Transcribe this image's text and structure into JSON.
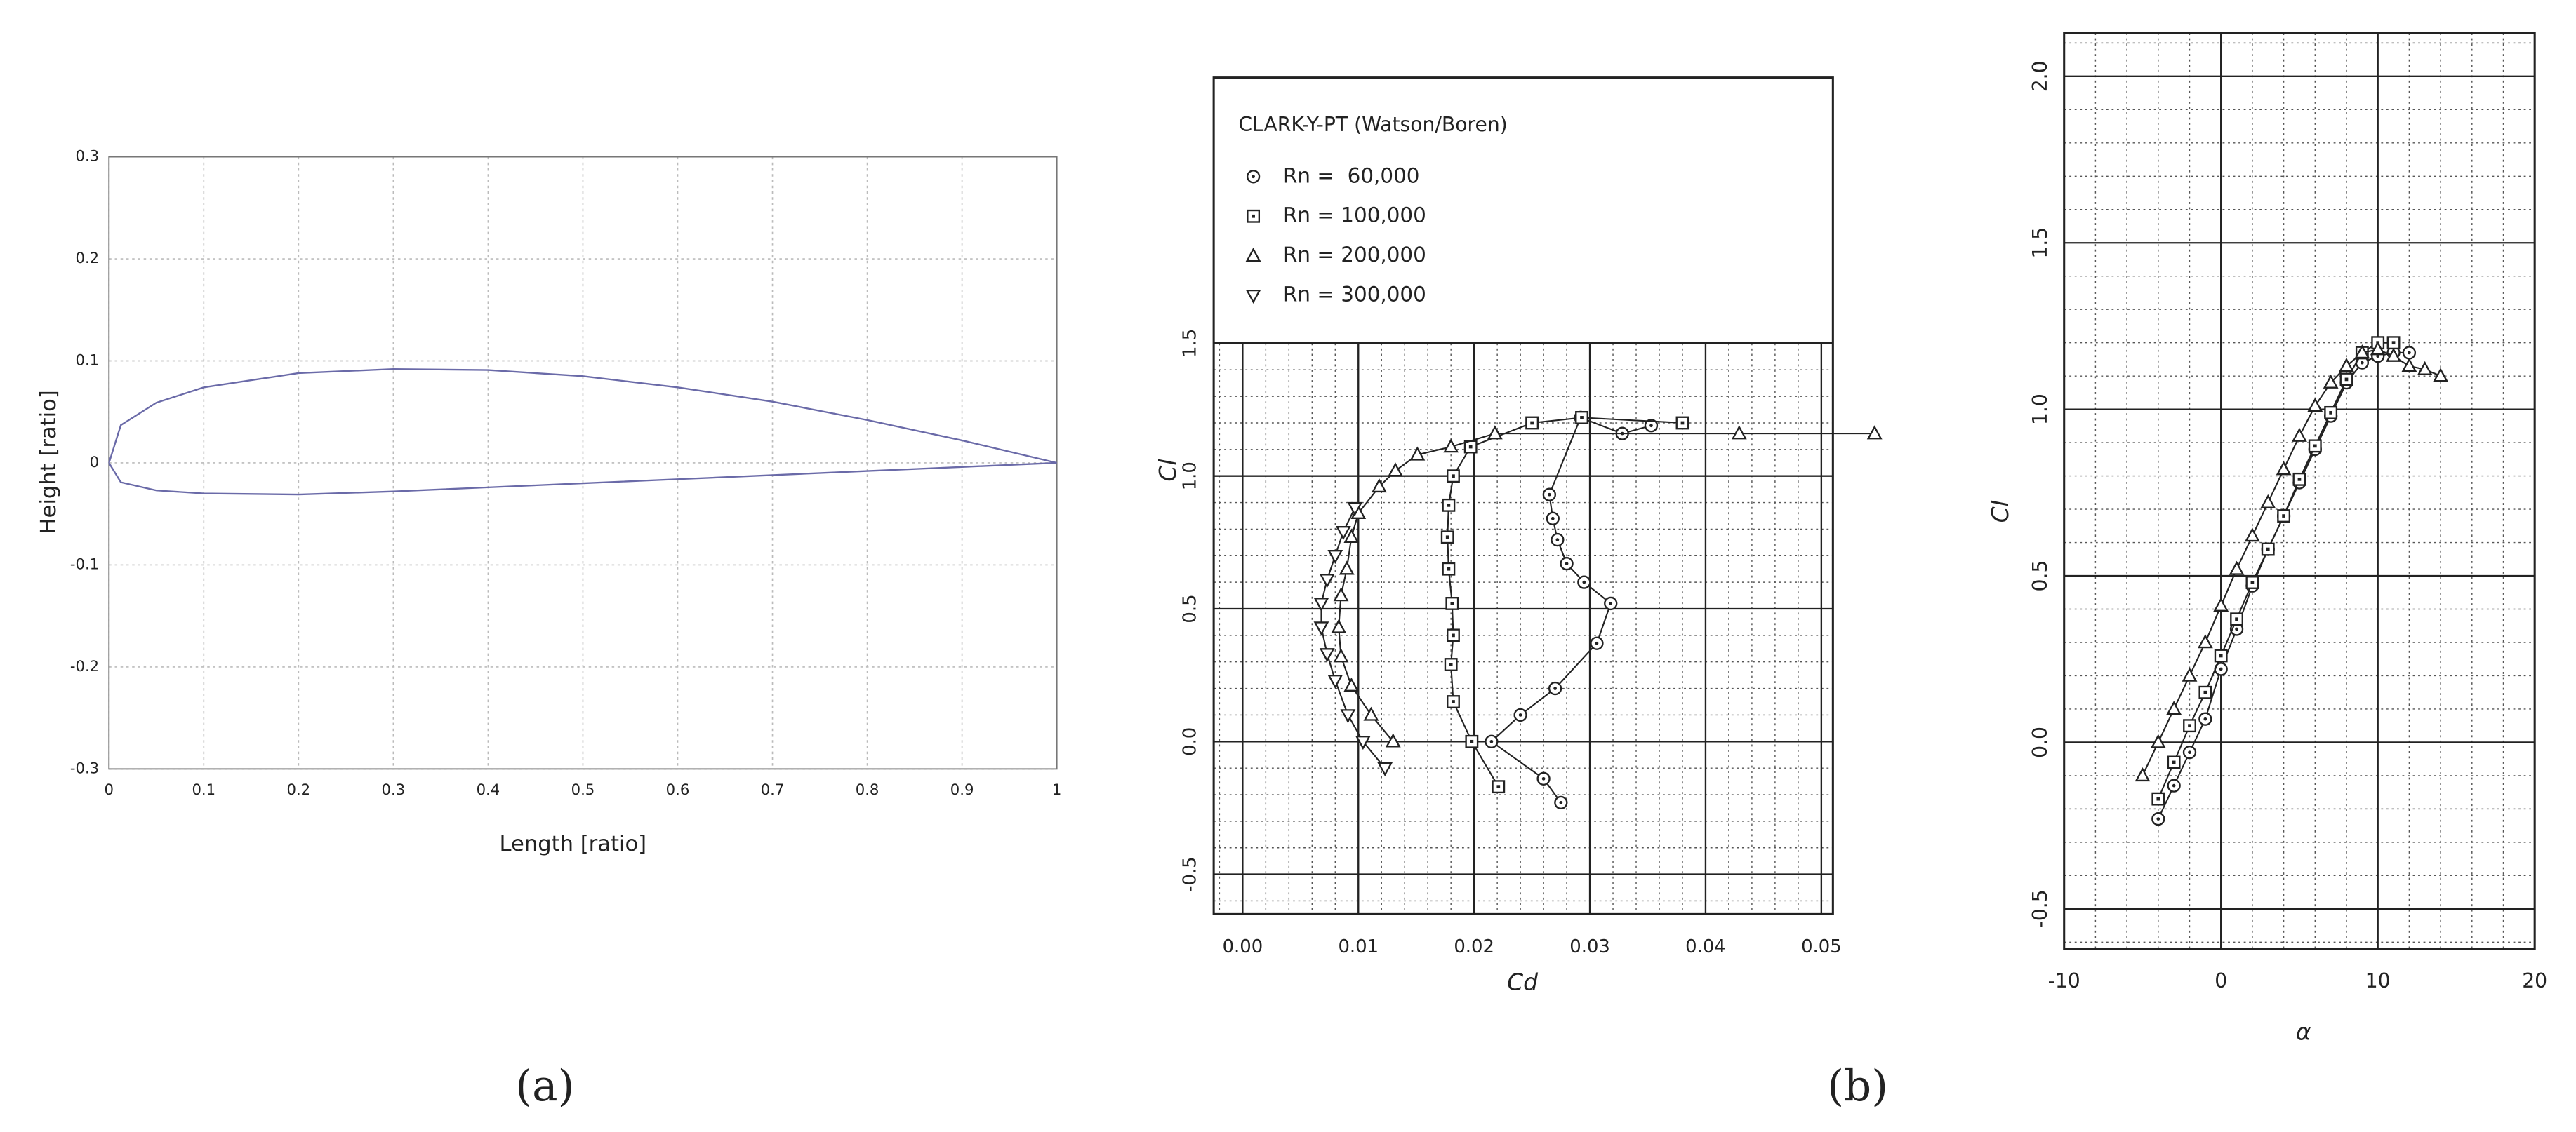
{
  "chart_data": [
    {
      "type": "line",
      "x_label": "Length [ratio]",
      "y_label": "Height [ratio]",
      "xlim": [
        0,
        1
      ],
      "ylim": [
        -0.3,
        0.3
      ],
      "xticks": [
        0,
        0.1,
        0.2,
        0.3,
        0.4,
        0.5,
        0.6,
        0.7,
        0.8,
        0.9,
        1
      ],
      "yticks": [
        -0.3,
        -0.2,
        -0.1,
        0,
        0.1,
        0.2,
        0.3
      ],
      "grid": true,
      "series": [
        {
          "color": "#6a6aa8",
          "x": [
            0,
            0.0125,
            0.05,
            0.1,
            0.2,
            0.3,
            0.4,
            0.5,
            0.6,
            0.7,
            0.8,
            0.9,
            1
          ],
          "values": [
            0,
            0.037,
            0.059,
            0.074,
            0.088,
            0.092,
            0.091,
            0.085,
            0.074,
            0.06,
            0.042,
            0.022,
            0
          ]
        },
        {
          "color": "#6a6aa8",
          "x": [
            0,
            0.0125,
            0.05,
            0.1,
            0.2,
            0.3,
            0.4,
            0.5,
            0.6,
            0.7,
            0.8,
            0.9,
            1
          ],
          "values": [
            0,
            -0.019,
            -0.027,
            -0.03,
            -0.031,
            -0.028,
            -0.024,
            -0.02,
            -0.016,
            -0.012,
            -0.008,
            -0.004,
            0
          ]
        }
      ]
    },
    {
      "type": "line",
      "x_label": "Cd",
      "y_label": "Cl",
      "legend_title": "CLARK-Y-PT (Watson/Boren)",
      "xlim": [
        -0.0025,
        0.051
      ],
      "ylim": [
        -0.65,
        1.5
      ],
      "xticks": [
        {
          "value": 0,
          "label": "0.00"
        },
        0.01,
        0.02,
        0.03,
        0.04,
        0.05
      ],
      "yticks": [
        -0.5,
        {
          "value": 0,
          "label": "0.0"
        },
        0.5,
        {
          "value": 1,
          "label": "1.0"
        },
        1.5
      ],
      "grid": true,
      "minor_grid": true,
      "series": [
        {
          "name": "Rn =  60,000",
          "marker": "circle-dot",
          "color": "#222222",
          "x": [
            0.0275,
            0.026,
            0.0215,
            0.024,
            0.027,
            0.0306,
            0.0318,
            0.0295,
            0.028,
            0.0272,
            0.0268,
            0.0265,
            0.0292,
            0.0328,
            0.0353
          ],
          "values": [
            -0.23,
            -0.14,
            0,
            0.1,
            0.2,
            0.37,
            0.52,
            0.6,
            0.67,
            0.76,
            0.84,
            0.93,
            1.22,
            1.16,
            1.19
          ]
        },
        {
          "name": "Rn = 100,000",
          "marker": "square-dot",
          "color": "#222222",
          "x": [
            0.0221,
            0.0198,
            0.0182,
            0.018,
            0.0182,
            0.0181,
            0.0178,
            0.0177,
            0.0178,
            0.0182,
            0.0197,
            0.025,
            0.0293,
            0.038
          ],
          "values": [
            -0.17,
            0,
            0.15,
            0.29,
            0.4,
            0.52,
            0.65,
            0.77,
            0.89,
            1,
            1.11,
            1.2,
            1.22,
            1.2
          ]
        },
        {
          "name": "Rn = 200,000",
          "marker": "triangle",
          "color": "#222222",
          "x": [
            0.013,
            0.0111,
            0.0094,
            0.0085,
            0.0083,
            0.0085,
            0.009,
            0.0094,
            0.01,
            0.0118,
            0.0132,
            0.0151,
            0.018,
            0.0218,
            0.0429,
            0.0546
          ],
          "values": [
            0,
            0.1,
            0.21,
            0.32,
            0.43,
            0.55,
            0.65,
            0.77,
            0.86,
            0.96,
            1.02,
            1.08,
            1.11,
            1.16,
            1.16,
            1.16
          ]
        },
        {
          "name": "Rn = 300,000",
          "marker": "triangle-down",
          "color": "#222222",
          "x": [
            0.0123,
            0.0104,
            0.0091,
            0.008,
            0.0073,
            0.0068,
            0.0068,
            0.0073,
            0.008,
            0.0087,
            0.0097
          ],
          "values": [
            -0.1,
            0,
            0.1,
            0.23,
            0.33,
            0.43,
            0.52,
            0.61,
            0.7,
            0.79,
            0.88
          ]
        }
      ]
    },
    {
      "type": "line",
      "x_label": "α",
      "y_label": "Cl",
      "xlim": [
        -10,
        20
      ],
      "ylim": [
        -0.62,
        2.13
      ],
      "xticks": [
        -10,
        0,
        10,
        20
      ],
      "yticks": [
        -0.5,
        {
          "value": 0,
          "label": "0.0"
        },
        0.5,
        {
          "value": 1,
          "label": "1.0"
        },
        1.5,
        {
          "value": 2,
          "label": "2.0"
        }
      ],
      "grid": true,
      "minor_grid": true,
      "series": [
        {
          "marker": "circle-dot",
          "color": "#222222",
          "x": [
            -4,
            -3,
            -2,
            -1,
            0,
            1,
            2,
            3,
            4,
            5,
            6,
            7,
            8,
            9,
            10,
            11,
            12
          ],
          "values": [
            -0.23,
            -0.13,
            -0.03,
            0.07,
            0.22,
            0.34,
            0.47,
            0.58,
            0.68,
            0.78,
            0.88,
            0.98,
            1.08,
            1.14,
            1.16,
            1.17,
            1.17
          ]
        },
        {
          "marker": "square-dot",
          "color": "#222222",
          "x": [
            -4,
            -3,
            -2,
            -1,
            0,
            1,
            2,
            3,
            4,
            5,
            6,
            7,
            8,
            9,
            10,
            11
          ],
          "values": [
            -0.17,
            -0.06,
            0.05,
            0.15,
            0.26,
            0.37,
            0.48,
            0.58,
            0.68,
            0.79,
            0.89,
            0.99,
            1.09,
            1.17,
            1.2,
            1.2
          ]
        },
        {
          "marker": "triangle",
          "color": "#222222",
          "x": [
            -5,
            -4,
            -3,
            -2,
            -1,
            0,
            1,
            2,
            3,
            4,
            5,
            6,
            7,
            8,
            9,
            10,
            11,
            12,
            13,
            14
          ],
          "values": [
            -0.1,
            0,
            0.1,
            0.2,
            0.3,
            0.41,
            0.52,
            0.62,
            0.72,
            0.82,
            0.92,
            1.01,
            1.08,
            1.13,
            1.17,
            1.18,
            1.16,
            1.13,
            1.12,
            1.1
          ]
        }
      ]
    }
  ],
  "panel_labels": [
    "(a)",
    "(b)"
  ]
}
